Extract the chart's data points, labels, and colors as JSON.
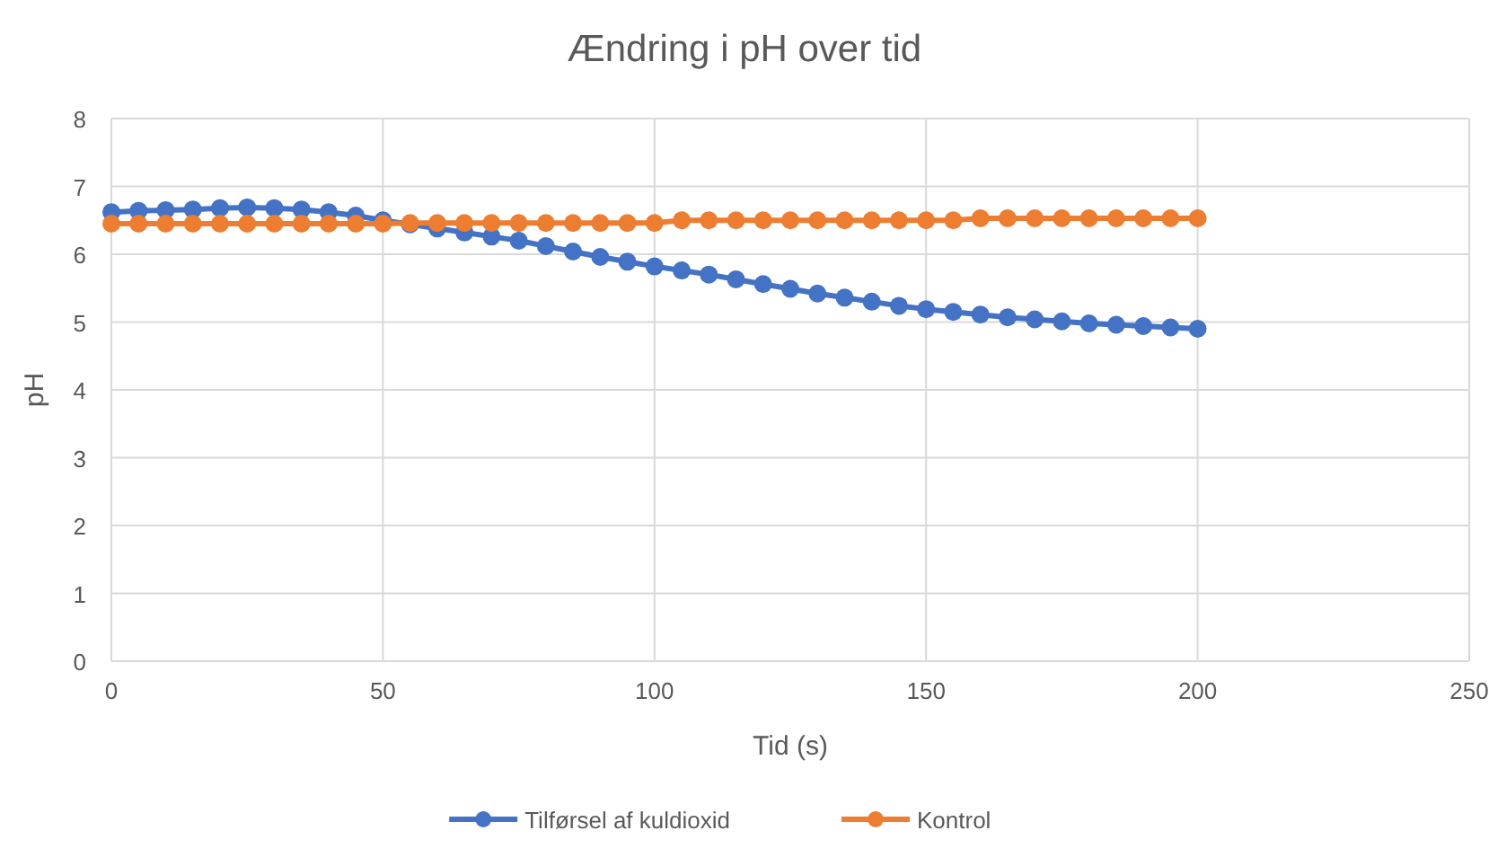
{
  "chart_data": {
    "type": "line",
    "title": "Ændring i pH over tid",
    "xlabel": "Tid (s)",
    "ylabel": "pH",
    "x": [
      0,
      5,
      10,
      15,
      20,
      25,
      30,
      35,
      40,
      45,
      50,
      55,
      60,
      65,
      70,
      75,
      80,
      85,
      90,
      95,
      100,
      105,
      110,
      115,
      120,
      125,
      130,
      135,
      140,
      145,
      150,
      155,
      160,
      165,
      170,
      175,
      180,
      185,
      190,
      195,
      200
    ],
    "series": [
      {
        "name": "Tilførsel af kuldioxid",
        "color": "#4472c4",
        "values": [
          6.62,
          6.64,
          6.65,
          6.66,
          6.68,
          6.69,
          6.68,
          6.66,
          6.62,
          6.57,
          6.5,
          6.44,
          6.38,
          6.32,
          6.26,
          6.2,
          6.12,
          6.04,
          5.96,
          5.89,
          5.82,
          5.76,
          5.7,
          5.63,
          5.56,
          5.49,
          5.42,
          5.36,
          5.3,
          5.24,
          5.19,
          5.15,
          5.11,
          5.07,
          5.04,
          5.01,
          4.98,
          4.96,
          4.94,
          4.92,
          4.9
        ]
      },
      {
        "name": "Kontrol",
        "color": "#ed7d31",
        "values": [
          6.45,
          6.45,
          6.45,
          6.45,
          6.45,
          6.45,
          6.45,
          6.45,
          6.45,
          6.45,
          6.45,
          6.46,
          6.46,
          6.46,
          6.46,
          6.46,
          6.46,
          6.46,
          6.46,
          6.46,
          6.46,
          6.5,
          6.5,
          6.5,
          6.5,
          6.5,
          6.5,
          6.5,
          6.5,
          6.5,
          6.5,
          6.5,
          6.53,
          6.53,
          6.53,
          6.53,
          6.53,
          6.53,
          6.53,
          6.53,
          6.53
        ]
      }
    ],
    "xlim": [
      0,
      250
    ],
    "xticks": [
      0,
      50,
      100,
      150,
      200,
      250
    ],
    "ylim": [
      0,
      8
    ],
    "yticks": [
      0,
      1,
      2,
      3,
      4,
      5,
      6,
      7,
      8
    ],
    "grid": true,
    "legend": "bottom",
    "marker": "circle",
    "line_style": "solid"
  }
}
